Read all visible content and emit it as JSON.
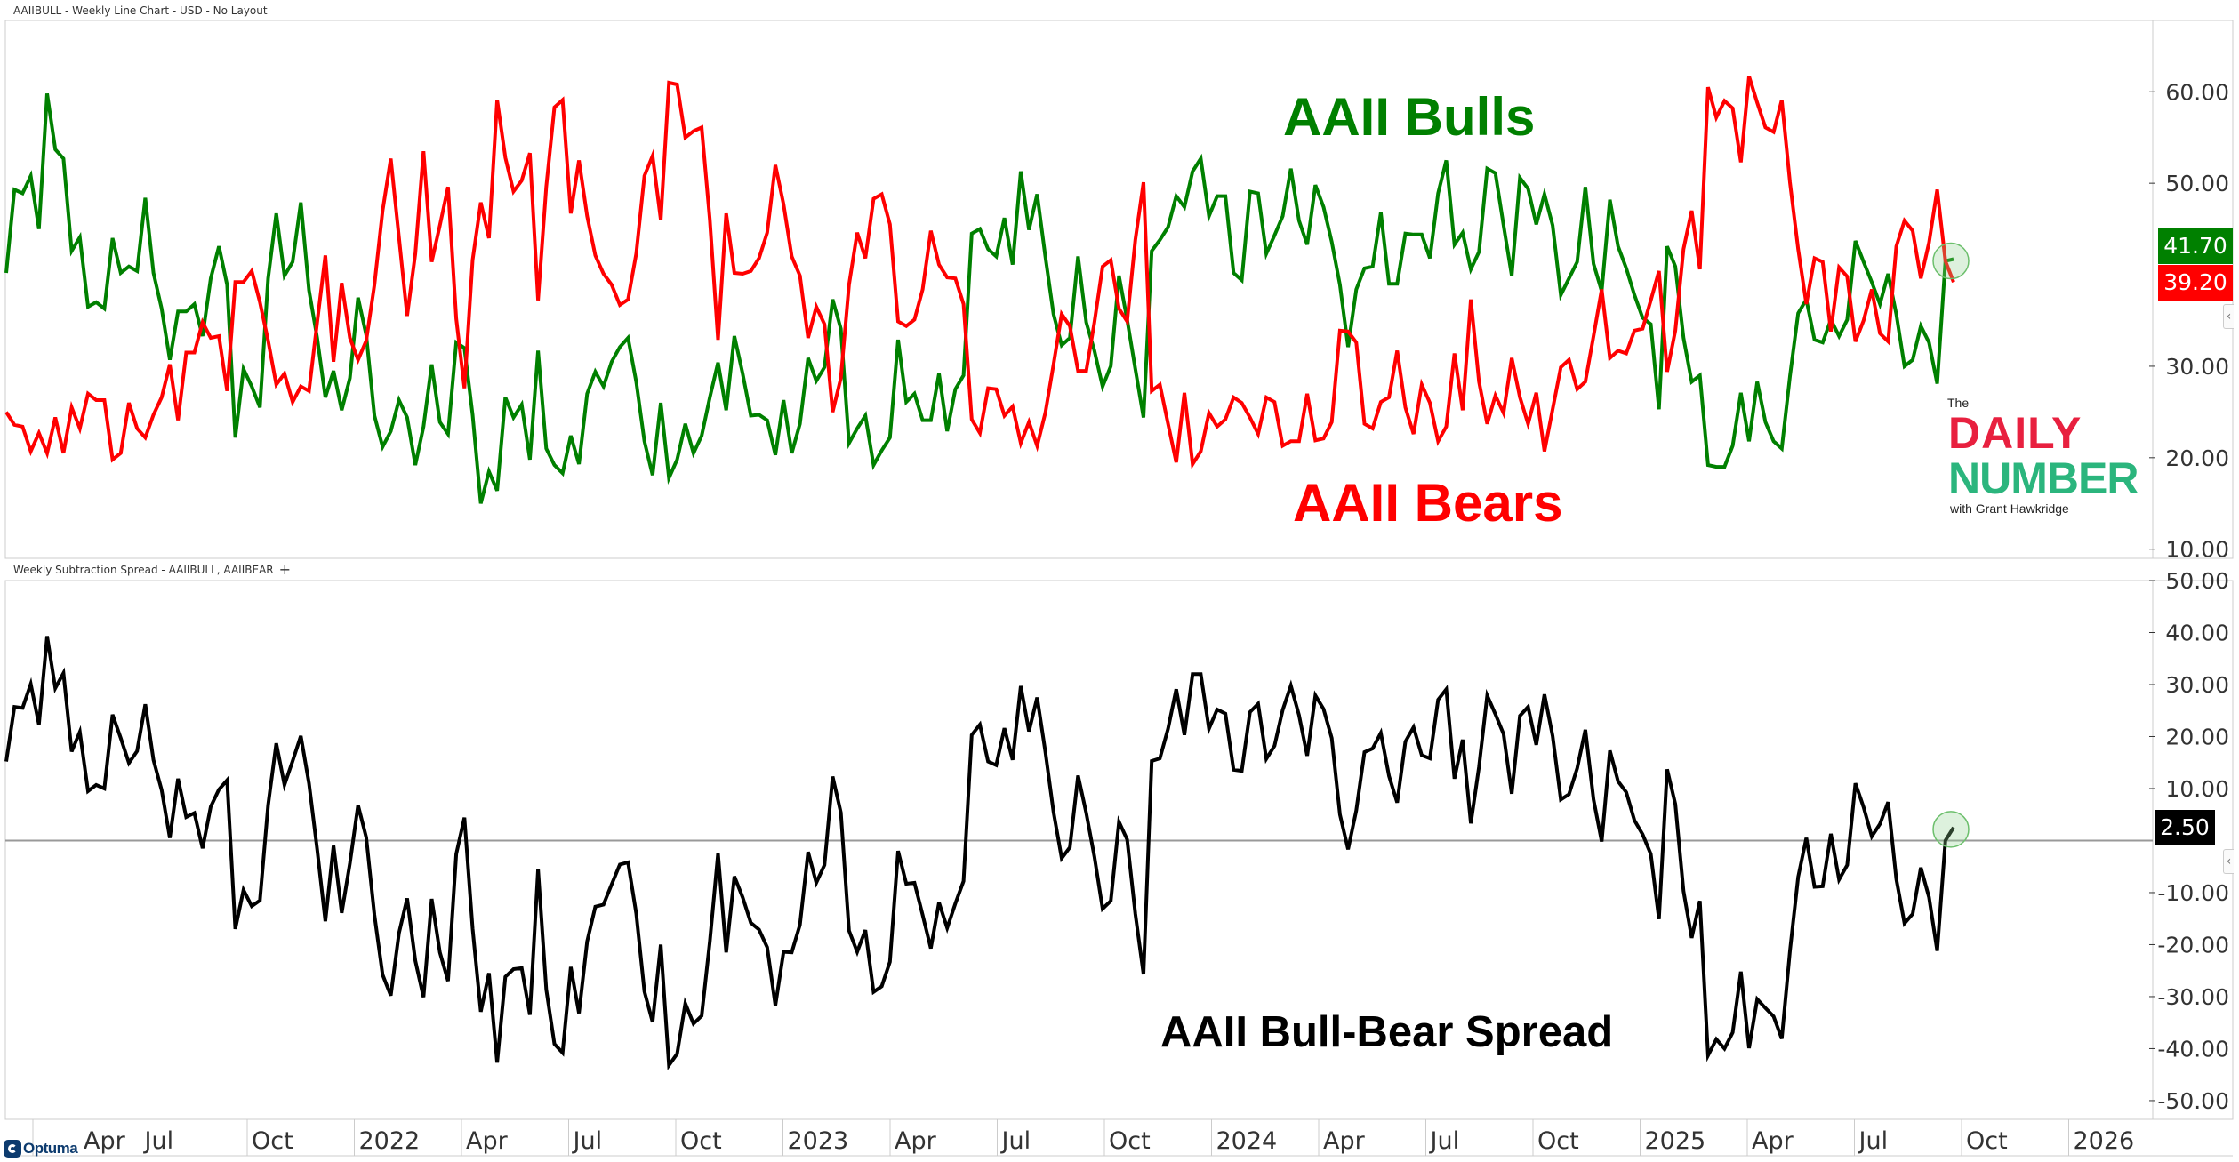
{
  "header": {
    "top_title": "AAIIBULL - Weekly Line Chart - USD - No Layout",
    "bottom_title": "Weekly Subtraction Spread - AAIIBULL, AAIIBEAR",
    "add_indicator": "+"
  },
  "annotations": {
    "bulls": "AAII Bulls",
    "bears": "AAII Bears",
    "spread": "AAII Bull-Bear Spread"
  },
  "last_values": {
    "bulls": "41.70",
    "bears": "39.20",
    "spread": "2.50"
  },
  "logo": {
    "the": "The",
    "daily": "DAILY",
    "number": "NUMBER",
    "with": "with Grant Hawkridge",
    "footer_brand": "Optuma"
  },
  "colors": {
    "bulls": "#008000",
    "bears": "#ff0000",
    "spread": "#000000",
    "zero_line": "#999999",
    "highlight": "#8fcf8f"
  },
  "x_axis": {
    "tick_labels": [
      "Apr",
      "Jul",
      "Oct",
      "2022",
      "Apr",
      "Jul",
      "Oct",
      "2023",
      "Apr",
      "Jul",
      "Oct",
      "2024",
      "Apr",
      "Jul",
      "Oct",
      "2025",
      "Apr",
      "Jul",
      "Oct",
      "2026"
    ]
  },
  "chart_data": [
    {
      "type": "line",
      "title": "AAIIBULL - Weekly Line Chart - USD - No Layout",
      "xlabel": "",
      "ylabel": "",
      "ylim": [
        9.0,
        67.8
      ],
      "y_ticks": [
        {
          "value": 60,
          "label": "60.00"
        },
        {
          "value": 50,
          "label": "50.00"
        },
        {
          "value": 30,
          "label": "30.00"
        },
        {
          "value": 20,
          "label": "20.00"
        },
        {
          "value": 10,
          "label": "10.00"
        }
      ],
      "grid": false,
      "series": [
        {
          "name": "AAII Bulls",
          "color": "#008000",
          "values": [
            40.2,
            49.3,
            48.9,
            50.8,
            45.0,
            59.8,
            53.7,
            52.7,
            42.6,
            44.1,
            36.5,
            37.0,
            36.3,
            44.0,
            40.2,
            40.9,
            40.4,
            48.4,
            40.2,
            36.3,
            30.7,
            36.0,
            36.0,
            36.8,
            33.3,
            39.6,
            43.1,
            38.9,
            22.2,
            29.7,
            27.8,
            25.5,
            39.6,
            46.7,
            39.9,
            41.4,
            47.9,
            38.3,
            33.1,
            26.6,
            29.5,
            25.2,
            28.7,
            37.5,
            33.4,
            24.6,
            21.2,
            22.9,
            26.3,
            24.4,
            19.2,
            23.4,
            30.2,
            23.9,
            22.6,
            32.6,
            32.0,
            24.7,
            15.0,
            18.5,
            16.4,
            26.6,
            24.4,
            25.8,
            19.8,
            31.7,
            21.0,
            19.2,
            18.3,
            22.4,
            19.3,
            27.0,
            29.4,
            27.8,
            30.5,
            32.1,
            33.1,
            28.3,
            21.8,
            18.1,
            26.0,
            17.8,
            19.8,
            23.7,
            20.5,
            22.4,
            26.6,
            30.4,
            25.2,
            33.3,
            29.2,
            24.6,
            24.7,
            24.1,
            20.3,
            26.3,
            20.5,
            23.7,
            30.9,
            28.4,
            29.9,
            37.3,
            34.1,
            21.6,
            23.2,
            24.6,
            19.2,
            20.8,
            22.2,
            32.9,
            26.1,
            27.0,
            24.1,
            24.1,
            29.2,
            22.9,
            27.5,
            29.0,
            44.5,
            45.0,
            42.8,
            42.0,
            46.2,
            41.1,
            51.3,
            44.9,
            48.8,
            42.0,
            35.7,
            32.3,
            33.1,
            42.0,
            34.8,
            31.7,
            27.8,
            30.0,
            39.9,
            35.1,
            29.7,
            24.4,
            42.6,
            43.8,
            45.2,
            48.6,
            47.4,
            51.3,
            52.7,
            46.4,
            48.6,
            48.6,
            40.2,
            39.4,
            49.1,
            48.9,
            42.3,
            44.3,
            46.4,
            51.6,
            45.9,
            43.3,
            49.8,
            47.4,
            43.6,
            38.9,
            32.1,
            38.4,
            40.7,
            40.9,
            46.8,
            39.0,
            39.0,
            44.5,
            44.4,
            44.4,
            41.8,
            48.9,
            52.5,
            43.3,
            44.6,
            40.6,
            42.5,
            51.6,
            51.1,
            45.4,
            39.9,
            50.6,
            49.4,
            45.5,
            48.8,
            45.4,
            37.8,
            39.6,
            41.4,
            49.6,
            41.2,
            38.2,
            48.2,
            43.1,
            40.7,
            37.8,
            35.3,
            34.6,
            25.3,
            43.1,
            40.9,
            33.1,
            28.3,
            29.0,
            19.2,
            19.0,
            19.0,
            21.3,
            27.1,
            21.8,
            28.3,
            23.9,
            21.8,
            21.0,
            28.9,
            35.8,
            37.3,
            32.9,
            32.6,
            35.1,
            33.3,
            35.1,
            43.7,
            41.4,
            39.2,
            36.8,
            40.1,
            35.7,
            30.0,
            30.7,
            34.4,
            32.6,
            28.1,
            41.5,
            41.7
          ]
        },
        {
          "name": "AAII Bears",
          "color": "#ff0000",
          "values": [
            25.0,
            23.6,
            23.4,
            20.7,
            22.7,
            20.5,
            24.4,
            20.5,
            25.5,
            23.2,
            27.0,
            26.3,
            26.3,
            19.8,
            20.5,
            26.0,
            23.2,
            22.2,
            24.7,
            26.6,
            30.2,
            24.1,
            31.5,
            31.5,
            34.8,
            33.1,
            33.3,
            27.3,
            39.2,
            39.2,
            40.4,
            37.0,
            32.8,
            28.0,
            29.2,
            26.1,
            27.8,
            27.3,
            34.8,
            42.1,
            30.5,
            39.1,
            33.1,
            30.7,
            32.8,
            38.9,
            47.0,
            52.7,
            44.1,
            35.5,
            42.3,
            53.5,
            41.4,
            45.4,
            49.6,
            35.2,
            27.6,
            41.6,
            47.9,
            44.0,
            59.1,
            52.8,
            49.1,
            50.3,
            53.3,
            37.2,
            49.6,
            58.3,
            59.1,
            46.7,
            52.5,
            46.4,
            42.1,
            40.1,
            38.9,
            36.7,
            37.3,
            42.3,
            50.8,
            53.0,
            46.0,
            61.0,
            60.8,
            55.0,
            55.7,
            56.1,
            46.0,
            32.9,
            46.7,
            40.2,
            40.1,
            40.4,
            41.8,
            44.6,
            52.0,
            47.7,
            42.0,
            39.9,
            33.1,
            36.5,
            34.6,
            25.0,
            28.7,
            38.9,
            44.6,
            41.8,
            48.3,
            48.8,
            45.5,
            34.9,
            34.4,
            35.1,
            38.4,
            44.8,
            41.1,
            39.7,
            39.6,
            36.8,
            24.2,
            22.7,
            27.6,
            27.5,
            24.6,
            25.6,
            21.6,
            23.9,
            21.3,
            24.9,
            30.2,
            35.7,
            34.4,
            29.5,
            29.5,
            34.8,
            40.9,
            41.6,
            36.3,
            34.9,
            43.8,
            50.1,
            27.3,
            28.0,
            23.7,
            19.5,
            27.1,
            19.3,
            20.7,
            24.9,
            23.4,
            24.2,
            26.6,
            26.0,
            24.4,
            22.6,
            26.6,
            26.1,
            21.3,
            21.8,
            21.8,
            27.0,
            21.9,
            22.1,
            23.9,
            33.9,
            33.8,
            32.6,
            23.7,
            23.2,
            26.1,
            26.6,
            31.7,
            25.5,
            22.6,
            28.0,
            26.0,
            21.8,
            23.4,
            31.4,
            25.2,
            37.3,
            28.3,
            23.7,
            26.8,
            24.9,
            30.9,
            26.6,
            23.7,
            27.1,
            20.7,
            25.3,
            29.9,
            30.7,
            27.5,
            28.3,
            33.3,
            38.4,
            30.9,
            31.7,
            31.4,
            33.9,
            34.1,
            37.2,
            40.4,
            29.4,
            33.9,
            42.8,
            47.0,
            40.6,
            60.5,
            57.2,
            59.0,
            58.2,
            52.3,
            61.7,
            58.8,
            56.1,
            55.6,
            59.1,
            50.1,
            42.8,
            36.8,
            41.8,
            41.4,
            33.8,
            40.8,
            39.8,
            32.7,
            35.0,
            38.4,
            33.6,
            32.7,
            43.1,
            45.9,
            44.8,
            39.6,
            43.5,
            49.3,
            41.5,
            39.2
          ]
        }
      ]
    },
    {
      "type": "line",
      "title": "Weekly Subtraction Spread - AAIIBULL, AAIIBEAR",
      "xlabel": "",
      "ylabel": "",
      "ylim": [
        -53.6,
        50.0
      ],
      "y_ticks": [
        {
          "value": 50,
          "label": "50.00"
        },
        {
          "value": 40,
          "label": "40.00"
        },
        {
          "value": 30,
          "label": "30.00"
        },
        {
          "value": 20,
          "label": "20.00"
        },
        {
          "value": 10,
          "label": "10.00"
        },
        {
          "value": -10,
          "label": "-10.00"
        },
        {
          "value": -20,
          "label": "-20.00"
        },
        {
          "value": -30,
          "label": "-30.00"
        },
        {
          "value": -40,
          "label": "-40.00"
        },
        {
          "value": -50,
          "label": "-50.00"
        }
      ],
      "reference_line": 0,
      "grid": false,
      "series": [
        {
          "name": "AAII Bull-Bear Spread",
          "color": "#000000",
          "values": [
            15.2,
            25.7,
            25.5,
            30.1,
            22.3,
            39.3,
            29.3,
            32.2,
            17.1,
            20.9,
            9.5,
            10.7,
            10.0,
            24.2,
            19.7,
            14.9,
            17.2,
            26.2,
            15.5,
            9.7,
            0.5,
            11.9,
            4.5,
            5.3,
            -1.5,
            6.5,
            9.8,
            11.6,
            -17.0,
            -9.5,
            -12.6,
            -11.5,
            6.8,
            18.7,
            10.7,
            15.3,
            20.1,
            11.0,
            -1.7,
            -15.5,
            -1.0,
            -13.9,
            -4.4,
            6.8,
            0.6,
            -14.3,
            -25.8,
            -29.8,
            -17.8,
            -11.1,
            -23.1,
            -30.1,
            -11.2,
            -21.5,
            -27.0,
            -2.6,
            4.4,
            -16.9,
            -32.9,
            -25.5,
            -42.7,
            -26.2,
            -24.7,
            -24.5,
            -33.5,
            -5.5,
            -28.6,
            -39.1,
            -40.8,
            -24.3,
            -33.2,
            -19.4,
            -12.7,
            -12.3,
            -8.4,
            -4.6,
            -4.2,
            -14.0,
            -29.0,
            -34.9,
            -20.0,
            -43.2,
            -41.0,
            -31.3,
            -35.2,
            -33.7,
            -19.4,
            -2.5,
            -21.5,
            -6.9,
            -10.9,
            -15.8,
            -17.1,
            -20.5,
            -31.7,
            -21.4,
            -21.5,
            -16.2,
            -2.2,
            -8.1,
            -4.7,
            12.3,
            5.4,
            -17.3,
            -21.4,
            -17.2,
            -29.1,
            -28.0,
            -23.3,
            -2.0,
            -8.3,
            -8.1,
            -14.3,
            -20.7,
            -11.9,
            -16.8,
            -12.1,
            -7.8,
            20.3,
            22.3,
            15.2,
            14.5,
            21.6,
            15.5,
            29.7,
            21.0,
            27.5,
            17.1,
            5.5,
            -3.4,
            -1.3,
            12.5,
            5.3,
            -3.1,
            -13.1,
            -11.6,
            3.6,
            0.2,
            -14.1,
            -25.7,
            15.3,
            15.8,
            21.5,
            29.1,
            20.3,
            32.0,
            32.0,
            21.5,
            25.2,
            24.4,
            13.6,
            13.4,
            24.7,
            26.3,
            15.7,
            18.2,
            25.1,
            29.8,
            24.1,
            16.3,
            27.9,
            25.3,
            19.7,
            5.0,
            -1.7,
            5.8,
            17.0,
            17.7,
            20.7,
            12.4,
            7.3,
            19.0,
            21.8,
            16.4,
            15.8,
            27.1,
            29.1,
            11.9,
            19.4,
            3.3,
            14.2,
            27.9,
            24.3,
            20.5,
            9.0,
            24.0,
            25.7,
            18.4,
            28.1,
            20.1,
            7.9,
            8.9,
            13.9,
            21.3,
            7.9,
            -0.2,
            17.3,
            11.4,
            9.3,
            3.9,
            1.2,
            -2.6,
            -15.1,
            13.7,
            7.0,
            -9.7,
            -18.7,
            -11.6,
            -41.3,
            -38.2,
            -40.0,
            -36.9,
            -25.2,
            -39.9,
            -30.5,
            -32.2,
            -33.8,
            -38.1,
            -21.2,
            -7.0,
            0.5,
            -8.9,
            -8.8,
            1.3,
            -7.5,
            -4.7,
            11.0,
            6.4,
            0.8,
            3.2,
            7.4,
            -7.4,
            -15.9,
            -14.1,
            -5.2,
            -10.9,
            -21.2,
            0.0,
            2.5
          ]
        }
      ]
    }
  ]
}
